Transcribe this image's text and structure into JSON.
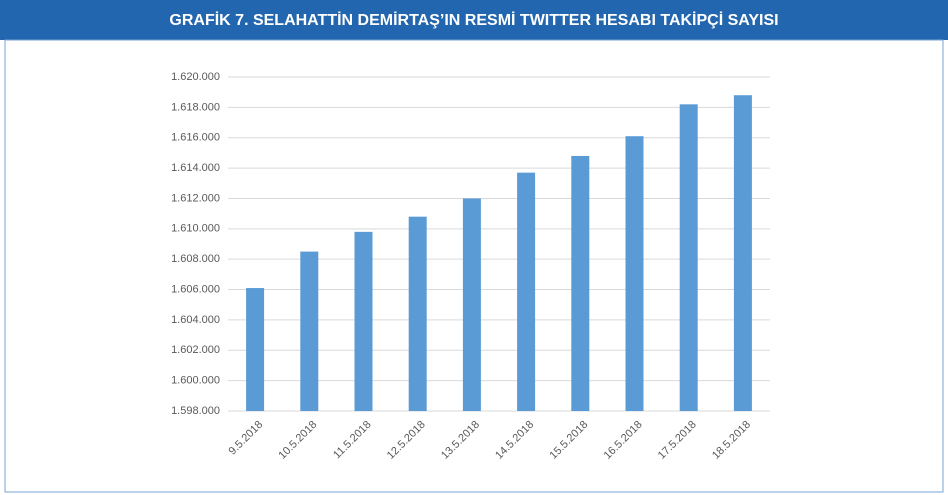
{
  "chart_data": {
    "type": "bar",
    "title": "GRAFİK 7. SELAHATTİN DEMİRTAŞ’IN RESMİ TWITTER HESABI TAKİPÇİ SAYISI",
    "categories": [
      "9.5.2018",
      "10.5.2018",
      "11.5.2018",
      "12.5.2018",
      "13.5.2018",
      "14.5.2018",
      "15.5.2018",
      "16.5.2018",
      "17.5.2018",
      "18.5.2018"
    ],
    "values": [
      1606100,
      1608500,
      1609800,
      1610800,
      1612000,
      1613700,
      1614800,
      1616100,
      1618200,
      1618800
    ],
    "color": "#5b9bd5",
    "ylim": [
      1598000,
      1620000
    ],
    "yticks": [
      {
        "value": 1598000,
        "label": "1.598.000"
      },
      {
        "value": 1600000,
        "label": "1.600.000"
      },
      {
        "value": 1602000,
        "label": "1.602.000"
      },
      {
        "value": 1604000,
        "label": "1.604.000"
      },
      {
        "value": 1606000,
        "label": "1.606.000"
      },
      {
        "value": 1608000,
        "label": "1.608.000"
      },
      {
        "value": 1610000,
        "label": "1.610.000"
      },
      {
        "value": 1612000,
        "label": "1.612.000"
      },
      {
        "value": 1614000,
        "label": "1.614.000"
      },
      {
        "value": 1616000,
        "label": "1.616.000"
      },
      {
        "value": 1618000,
        "label": "1.618.000"
      },
      {
        "value": 1620000,
        "label": "1.620.000"
      }
    ],
    "grid": true
  }
}
